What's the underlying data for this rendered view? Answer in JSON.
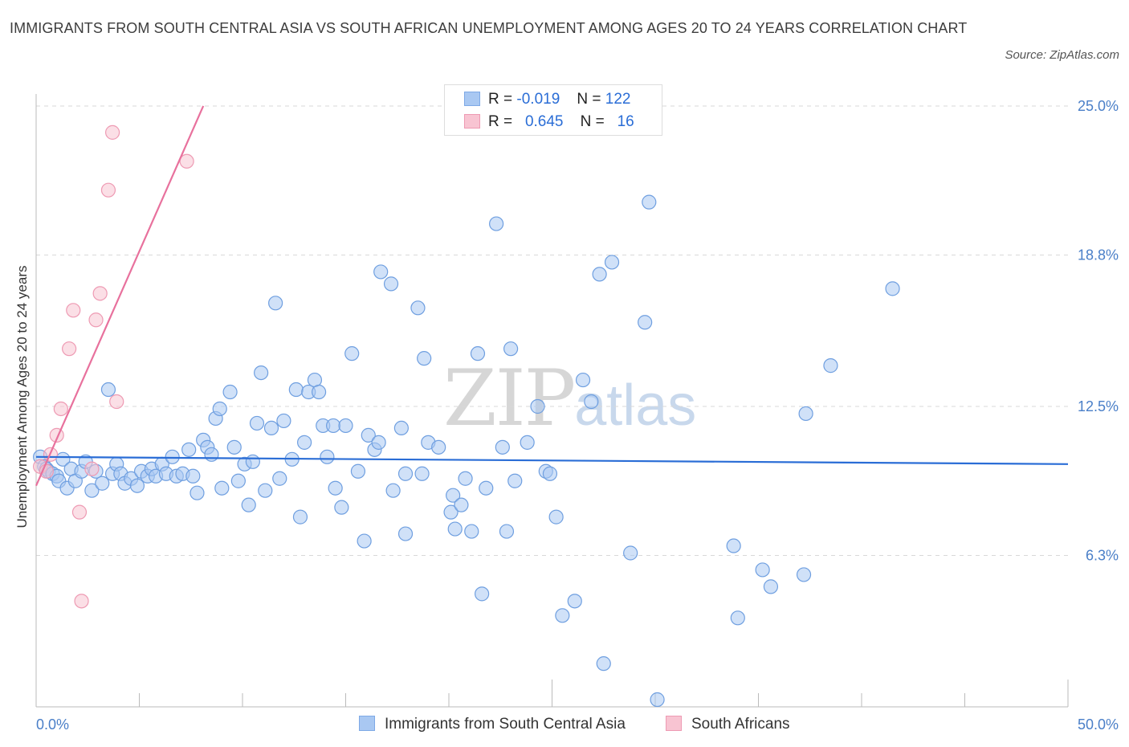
{
  "title": "IMMIGRANTS FROM SOUTH CENTRAL ASIA VS SOUTH AFRICAN UNEMPLOYMENT AMONG AGES 20 TO 24 YEARS CORRELATION CHART",
  "source": "Source: ZipAtlas.com",
  "watermark": {
    "zip": "ZIP",
    "atlas": "atlas"
  },
  "legend": {
    "rows": [
      {
        "r_label": "R =",
        "r_value": "-0.019",
        "n_label": "N =",
        "n_value": "122",
        "color": "#a9c8f2",
        "border": "#7ea9e6"
      },
      {
        "r_label": "R =",
        "r_value": "0.645",
        "n_label": "N =",
        "n_value": "16",
        "color": "#f8c4d2",
        "border": "#ee9ab3"
      }
    ]
  },
  "bottom_legend": [
    {
      "label": "Immigrants from South Central Asia",
      "color": "#a9c8f2",
      "border": "#7ea9e6"
    },
    {
      "label": "South Africans",
      "color": "#f8c4d2",
      "border": "#ee9ab3"
    }
  ],
  "chart_data": {
    "type": "scatter",
    "title": "IMMIGRANTS FROM SOUTH CENTRAL ASIA VS SOUTH AFRICAN UNEMPLOYMENT AMONG AGES 20 TO 24 YEARS CORRELATION CHART",
    "xlabel": "",
    "ylabel": "Unemployment Among Ages 20 to 24 years",
    "xlim": [
      0,
      50
    ],
    "ylim": [
      0,
      25.5
    ],
    "x_tick_labels": [
      "0.0%",
      "50.0%"
    ],
    "y_ticks": [
      6.3,
      12.5,
      18.8,
      25.0
    ],
    "y_tick_labels": [
      "6.3%",
      "12.5%",
      "18.8%",
      "25.0%"
    ],
    "grid": true,
    "series": [
      {
        "name": "Immigrants from South Central Asia",
        "color": "#a9c8f2",
        "stroke": "#6f9fe0",
        "trend": {
          "x": [
            0,
            50
          ],
          "y": [
            10.4,
            10.1
          ],
          "color": "#2a6dd6"
        },
        "points": [
          [
            0.2,
            10.4
          ],
          [
            0.4,
            10.0
          ],
          [
            0.5,
            9.9
          ],
          [
            0.6,
            9.8
          ],
          [
            0.8,
            9.7
          ],
          [
            1.0,
            9.6
          ],
          [
            1.1,
            9.4
          ],
          [
            1.3,
            10.3
          ],
          [
            1.5,
            9.1
          ],
          [
            1.7,
            9.9
          ],
          [
            1.9,
            9.4
          ],
          [
            2.2,
            9.8
          ],
          [
            2.4,
            10.2
          ],
          [
            2.7,
            9.0
          ],
          [
            2.9,
            9.8
          ],
          [
            3.2,
            9.3
          ],
          [
            3.5,
            13.2
          ],
          [
            3.7,
            9.7
          ],
          [
            3.9,
            10.1
          ],
          [
            4.1,
            9.7
          ],
          [
            4.3,
            9.3
          ],
          [
            4.6,
            9.5
          ],
          [
            4.9,
            9.2
          ],
          [
            5.1,
            9.8
          ],
          [
            5.4,
            9.6
          ],
          [
            5.6,
            9.9
          ],
          [
            5.8,
            9.6
          ],
          [
            6.1,
            10.1
          ],
          [
            6.3,
            9.7
          ],
          [
            6.6,
            10.4
          ],
          [
            6.8,
            9.6
          ],
          [
            7.1,
            9.7
          ],
          [
            7.4,
            10.7
          ],
          [
            7.6,
            9.6
          ],
          [
            7.8,
            8.9
          ],
          [
            8.1,
            11.1
          ],
          [
            8.3,
            10.8
          ],
          [
            8.5,
            10.5
          ],
          [
            8.7,
            12.0
          ],
          [
            8.9,
            12.4
          ],
          [
            9.0,
            9.1
          ],
          [
            9.4,
            13.1
          ],
          [
            9.6,
            10.8
          ],
          [
            9.8,
            9.4
          ],
          [
            10.1,
            10.1
          ],
          [
            10.3,
            8.4
          ],
          [
            10.5,
            10.2
          ],
          [
            10.7,
            11.8
          ],
          [
            10.9,
            13.9
          ],
          [
            11.1,
            9.0
          ],
          [
            11.4,
            11.6
          ],
          [
            11.6,
            16.8
          ],
          [
            11.8,
            9.5
          ],
          [
            12.0,
            11.9
          ],
          [
            12.4,
            10.3
          ],
          [
            12.6,
            13.2
          ],
          [
            12.8,
            7.9
          ],
          [
            13.0,
            11.0
          ],
          [
            13.2,
            13.1
          ],
          [
            13.5,
            13.6
          ],
          [
            13.7,
            13.1
          ],
          [
            13.9,
            11.7
          ],
          [
            14.1,
            10.4
          ],
          [
            14.4,
            11.7
          ],
          [
            14.5,
            9.1
          ],
          [
            14.8,
            8.3
          ],
          [
            15.0,
            11.7
          ],
          [
            15.3,
            14.7
          ],
          [
            15.6,
            9.8
          ],
          [
            15.9,
            6.9
          ],
          [
            16.1,
            11.3
          ],
          [
            16.4,
            10.7
          ],
          [
            16.6,
            11.0
          ],
          [
            16.7,
            18.1
          ],
          [
            17.2,
            17.6
          ],
          [
            17.3,
            9.0
          ],
          [
            17.9,
            7.2
          ],
          [
            17.7,
            11.6
          ],
          [
            17.9,
            9.7
          ],
          [
            18.5,
            16.6
          ],
          [
            18.7,
            9.7
          ],
          [
            18.8,
            14.5
          ],
          [
            19.0,
            11.0
          ],
          [
            19.5,
            10.8
          ],
          [
            20.1,
            8.1
          ],
          [
            20.2,
            8.8
          ],
          [
            20.3,
            7.4
          ],
          [
            20.6,
            8.4
          ],
          [
            20.8,
            9.5
          ],
          [
            21.1,
            7.3
          ],
          [
            21.4,
            14.7
          ],
          [
            21.6,
            4.7
          ],
          [
            21.8,
            9.1
          ],
          [
            22.3,
            20.1
          ],
          [
            22.6,
            10.8
          ],
          [
            22.8,
            7.3
          ],
          [
            23.0,
            14.9
          ],
          [
            23.2,
            9.4
          ],
          [
            23.8,
            11.0
          ],
          [
            24.3,
            12.5
          ],
          [
            24.7,
            9.8
          ],
          [
            24.9,
            9.7
          ],
          [
            25.2,
            7.9
          ],
          [
            25.5,
            3.8
          ],
          [
            26.1,
            4.4
          ],
          [
            26.5,
            13.6
          ],
          [
            26.9,
            12.7
          ],
          [
            27.3,
            18.0
          ],
          [
            27.5,
            1.8
          ],
          [
            27.9,
            18.5
          ],
          [
            28.8,
            6.4
          ],
          [
            29.5,
            16.0
          ],
          [
            29.7,
            21.0
          ],
          [
            30.1,
            0.3
          ],
          [
            33.8,
            6.7
          ],
          [
            34.0,
            3.7
          ],
          [
            35.2,
            5.7
          ],
          [
            35.6,
            5.0
          ],
          [
            37.2,
            5.5
          ],
          [
            37.3,
            12.2
          ],
          [
            38.5,
            14.2
          ],
          [
            41.5,
            17.4
          ]
        ]
      },
      {
        "name": "South Africans",
        "color": "#f8c4d2",
        "stroke": "#ee9ab3",
        "trend": {
          "x": [
            0,
            8.1
          ],
          "y": [
            9.2,
            25.0
          ],
          "color": "#e8719d"
        },
        "points": [
          [
            0.2,
            10.0
          ],
          [
            0.5,
            9.8
          ],
          [
            0.7,
            10.5
          ],
          [
            1.0,
            11.3
          ],
          [
            1.2,
            12.4
          ],
          [
            1.6,
            14.9
          ],
          [
            1.8,
            16.5
          ],
          [
            2.1,
            8.1
          ],
          [
            2.2,
            4.4
          ],
          [
            2.7,
            9.9
          ],
          [
            2.9,
            16.1
          ],
          [
            3.1,
            17.2
          ],
          [
            3.5,
            21.5
          ],
          [
            3.7,
            23.9
          ],
          [
            3.9,
            12.7
          ],
          [
            7.3,
            22.7
          ]
        ]
      }
    ]
  }
}
